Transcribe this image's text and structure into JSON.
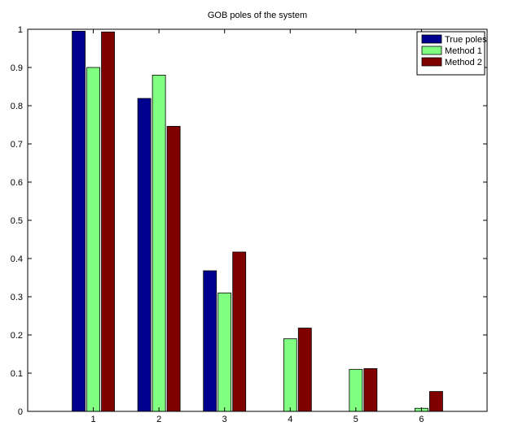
{
  "chart_data": {
    "type": "bar",
    "title": "GOB poles of the system",
    "xlabel": "",
    "ylabel": "",
    "categories": [
      "1",
      "2",
      "3",
      "4",
      "5",
      "6"
    ],
    "ylim": [
      0,
      1
    ],
    "yticks": [
      "0",
      "0.1",
      "0.2",
      "0.3",
      "0.4",
      "0.5",
      "0.6",
      "0.7",
      "0.8",
      "0.9",
      "1"
    ],
    "grid": false,
    "legend_position": "top-right",
    "series": [
      {
        "name": "True poles",
        "color": "#00008f",
        "values": [
          0.995,
          0.819,
          0.368,
          0,
          0,
          0
        ]
      },
      {
        "name": "Method 1",
        "color": "#80ff80",
        "values": [
          0.9,
          0.88,
          0.31,
          0.19,
          0.11,
          0.008
        ]
      },
      {
        "name": "Method 2",
        "color": "#800000",
        "values": [
          0.993,
          0.746,
          0.417,
          0.218,
          0.112,
          0.052
        ]
      }
    ]
  }
}
